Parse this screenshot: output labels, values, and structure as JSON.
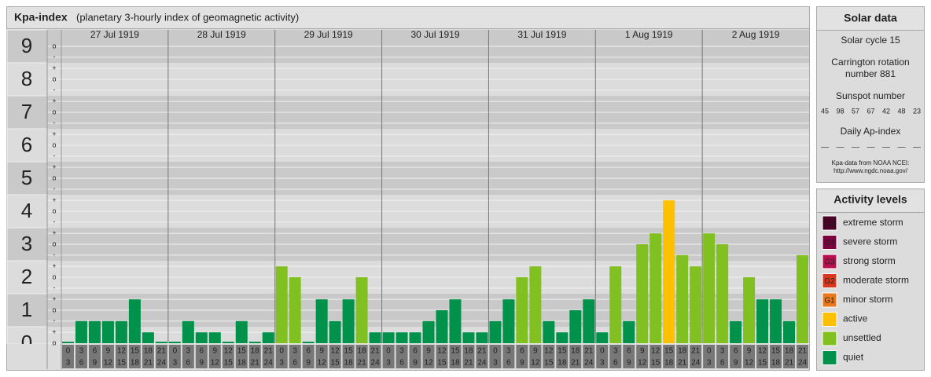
{
  "header": {
    "title": "Kpa-index",
    "subtitle": "(planetary 3-hourly index of geomagnetic activity)"
  },
  "chart_data": {
    "type": "bar",
    "ylim": [
      0,
      9.5
    ],
    "yticks": [
      0,
      1,
      2,
      3,
      4,
      5,
      6,
      7,
      8,
      9
    ],
    "minor_ticks": [
      {
        "value": 0,
        "label": "o"
      },
      {
        "value": 0.33,
        "label": "+"
      },
      {
        "value": 0.67,
        "label": "-"
      },
      {
        "value": 1,
        "label": "o"
      },
      {
        "value": 1.33,
        "label": "+"
      },
      {
        "value": 1.67,
        "label": "-"
      },
      {
        "value": 2,
        "label": "o"
      },
      {
        "value": 2.33,
        "label": "+"
      },
      {
        "value": 2.67,
        "label": "-"
      },
      {
        "value": 3,
        "label": "o"
      },
      {
        "value": 3.33,
        "label": "+"
      },
      {
        "value": 3.67,
        "label": "-"
      },
      {
        "value": 4,
        "label": "o"
      },
      {
        "value": 4.33,
        "label": "+"
      },
      {
        "value": 4.67,
        "label": "-"
      },
      {
        "value": 5,
        "label": "o"
      },
      {
        "value": 5.33,
        "label": "+"
      },
      {
        "value": 5.67,
        "label": "-"
      },
      {
        "value": 6,
        "label": "o"
      },
      {
        "value": 6.33,
        "label": "+"
      },
      {
        "value": 6.67,
        "label": "-"
      },
      {
        "value": 7,
        "label": "o"
      },
      {
        "value": 7.33,
        "label": "+"
      },
      {
        "value": 7.67,
        "label": "-"
      },
      {
        "value": 8,
        "label": "o"
      },
      {
        "value": 8.33,
        "label": "+"
      },
      {
        "value": 8.67,
        "label": "-"
      },
      {
        "value": 9,
        "label": "o"
      }
    ],
    "hours": [
      [
        "0",
        "3"
      ],
      [
        "3",
        "6"
      ],
      [
        "6",
        "9"
      ],
      [
        "9",
        "12"
      ],
      [
        "12",
        "15"
      ],
      [
        "15",
        "18"
      ],
      [
        "18",
        "21"
      ],
      [
        "21",
        "24"
      ]
    ],
    "days": [
      {
        "name": "27 Jul 1919",
        "values": [
          0,
          0.67,
          0.67,
          0.67,
          0.67,
          1.33,
          0.33,
          0
        ],
        "colors": [
          "#00924a",
          "#00924a",
          "#00924a",
          "#00924a",
          "#00924a",
          "#00924a",
          "#00924a",
          "#00924a"
        ]
      },
      {
        "name": "28 Jul 1919",
        "values": [
          0,
          0.67,
          0.33,
          0.33,
          0,
          0.67,
          0,
          0.33
        ],
        "colors": [
          "#00924a",
          "#00924a",
          "#00924a",
          "#00924a",
          "#00924a",
          "#00924a",
          "#00924a",
          "#00924a"
        ]
      },
      {
        "name": "29 Jul 1919",
        "values": [
          2.33,
          2,
          0,
          1.33,
          0.67,
          1.33,
          2,
          0.33
        ],
        "colors": [
          "#80c020",
          "#80c020",
          "#00924a",
          "#00924a",
          "#00924a",
          "#00924a",
          "#80c020",
          "#00924a"
        ]
      },
      {
        "name": "30 Jul 1919",
        "values": [
          0.33,
          0.33,
          0.33,
          0.67,
          1,
          1.33,
          0.33,
          0.33
        ],
        "colors": [
          "#00924a",
          "#00924a",
          "#00924a",
          "#00924a",
          "#00924a",
          "#00924a",
          "#00924a",
          "#00924a"
        ]
      },
      {
        "name": "31 Jul 1919",
        "values": [
          0.67,
          1.33,
          2,
          2.33,
          0.67,
          0.33,
          1,
          1.33
        ],
        "colors": [
          "#00924a",
          "#00924a",
          "#80c020",
          "#80c020",
          "#00924a",
          "#00924a",
          "#00924a",
          "#00924a"
        ]
      },
      {
        "name": "1 Aug 1919",
        "values": [
          0.33,
          2.33,
          0.67,
          3,
          3.33,
          4.33,
          2.67,
          2.33
        ],
        "colors": [
          "#00924a",
          "#80c020",
          "#00924a",
          "#80c020",
          "#80c020",
          "#ffc000",
          "#80c020",
          "#80c020"
        ]
      },
      {
        "name": "2 Aug 1919",
        "values": [
          3.33,
          3,
          0.67,
          2,
          1.33,
          1.33,
          0.67,
          2.67
        ],
        "colors": [
          "#80c020",
          "#80c020",
          "#00924a",
          "#80c020",
          "#00924a",
          "#00924a",
          "#00924a",
          "#80c020"
        ]
      }
    ]
  },
  "solar_data": {
    "title": "Solar data",
    "cycle": "Solar cycle 15",
    "carrington": [
      "Carrington rotation",
      "number 881"
    ],
    "sunspot_label": "Sunspot number",
    "sunspot": [
      45,
      98,
      57,
      67,
      42,
      48,
      23
    ],
    "ap_label": "Daily Ap-index",
    "ap": [
      "––",
      "––",
      "––",
      "––",
      "––",
      "––",
      "––"
    ],
    "source": [
      "Kpa-data from NOAA NCEI:",
      "http://www.ngdc.noaa.gov/"
    ]
  },
  "activity_levels": {
    "title": "Activity levels",
    "items": [
      {
        "badge": "G5",
        "name": "extreme storm",
        "color": "#4a0024"
      },
      {
        "badge": "G4",
        "name": "severe storm",
        "color": "#7a0040"
      },
      {
        "badge": "G3",
        "name": "strong storm",
        "color": "#b8104e"
      },
      {
        "badge": "G2",
        "name": "moderate storm",
        "color": "#d8381c"
      },
      {
        "badge": "G1",
        "name": "minor storm",
        "color": "#e8781c"
      },
      {
        "name": "active",
        "color": "#ffc000"
      },
      {
        "name": "unsettled",
        "color": "#80c020"
      },
      {
        "name": "quiet",
        "color": "#00924a"
      }
    ]
  }
}
